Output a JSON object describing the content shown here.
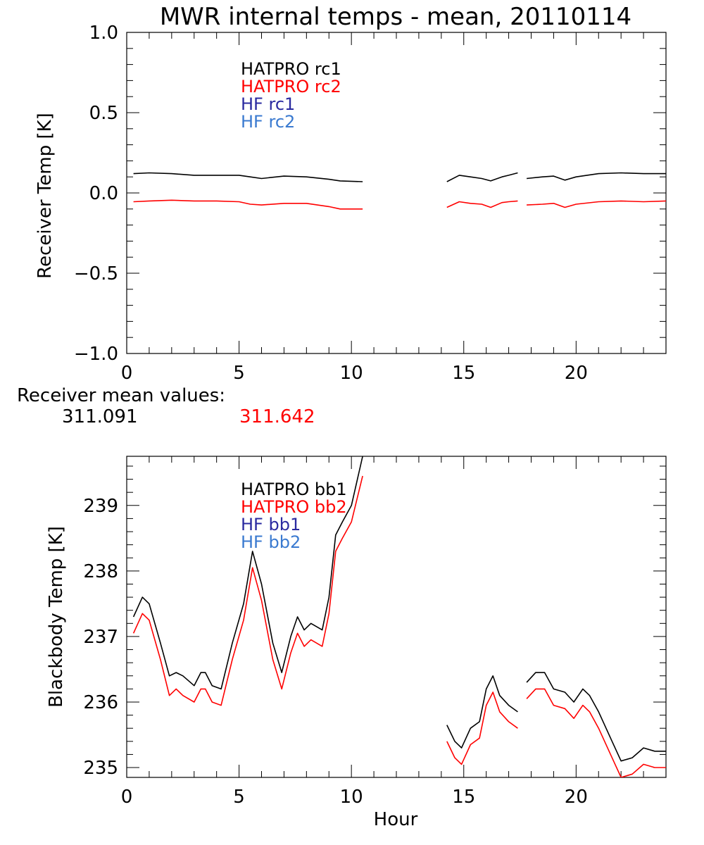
{
  "title": "MWR internal temps - mean, 20110114",
  "xlabel": "Hour",
  "x_tick_labels": [
    "0",
    "5",
    "10",
    "15",
    "20"
  ],
  "receiver_mean": {
    "label": "Receiver mean values:",
    "values": [
      {
        "text": "311.091",
        "color": "#000000"
      },
      {
        "text": "311.642",
        "color": "#ff0000"
      }
    ]
  },
  "chart_data": [
    {
      "type": "line",
      "ylabel": "Receiver Temp [K]",
      "xlabel": "",
      "xlim": [
        0,
        24
      ],
      "ylim": [
        -1.0,
        1.0
      ],
      "y_tick_labels": [
        "-1.0",
        "-0.5",
        "0.0",
        "0.5",
        "1.0"
      ],
      "y_tick_values": [
        -1.0,
        -0.5,
        0.0,
        0.5,
        1.0
      ],
      "legend": [
        {
          "text": "HATPRO rc1",
          "color": "#000000"
        },
        {
          "text": "HATPRO rc2",
          "color": "#ff0000"
        },
        {
          "text": "HF rc1",
          "color": "#2a2aa0"
        },
        {
          "text": "HF rc2",
          "color": "#3a7ad0"
        }
      ],
      "series": [
        {
          "name": "HATPRO rc1",
          "color": "#000000",
          "segments": [
            [
              [
                0.3,
                0.12
              ],
              [
                1.0,
                0.125
              ],
              [
                2.0,
                0.12
              ],
              [
                3.0,
                0.11
              ],
              [
                4.0,
                0.11
              ],
              [
                5.0,
                0.11
              ],
              [
                5.5,
                0.1
              ],
              [
                6.0,
                0.09
              ],
              [
                7.0,
                0.105
              ],
              [
                8.0,
                0.1
              ],
              [
                9.0,
                0.085
              ],
              [
                9.5,
                0.075
              ],
              [
                10.5,
                0.07
              ]
            ],
            [
              [
                14.25,
                0.07
              ],
              [
                14.8,
                0.11
              ],
              [
                15.3,
                0.1
              ],
              [
                15.8,
                0.09
              ],
              [
                16.2,
                0.075
              ],
              [
                16.7,
                0.1
              ],
              [
                17.0,
                0.11
              ],
              [
                17.4,
                0.125
              ]
            ],
            [
              [
                17.8,
                0.09
              ],
              [
                18.5,
                0.1
              ],
              [
                19.0,
                0.105
              ],
              [
                19.5,
                0.08
              ],
              [
                20.0,
                0.1
              ],
              [
                21.0,
                0.12
              ],
              [
                22.0,
                0.125
              ],
              [
                23.0,
                0.12
              ],
              [
                24.0,
                0.12
              ]
            ]
          ]
        },
        {
          "name": "HATPRO rc2",
          "color": "#ff0000",
          "segments": [
            [
              [
                0.3,
                -0.055
              ],
              [
                1.0,
                -0.05
              ],
              [
                2.0,
                -0.045
              ],
              [
                3.0,
                -0.05
              ],
              [
                4.0,
                -0.05
              ],
              [
                5.0,
                -0.055
              ],
              [
                5.5,
                -0.07
              ],
              [
                6.0,
                -0.075
              ],
              [
                7.0,
                -0.065
              ],
              [
                8.0,
                -0.065
              ],
              [
                9.0,
                -0.085
              ],
              [
                9.5,
                -0.1
              ],
              [
                10.5,
                -0.1
              ]
            ],
            [
              [
                14.25,
                -0.09
              ],
              [
                14.8,
                -0.055
              ],
              [
                15.3,
                -0.065
              ],
              [
                15.8,
                -0.07
              ],
              [
                16.2,
                -0.09
              ],
              [
                16.7,
                -0.06
              ],
              [
                17.0,
                -0.055
              ],
              [
                17.4,
                -0.05
              ]
            ],
            [
              [
                17.8,
                -0.075
              ],
              [
                18.5,
                -0.07
              ],
              [
                19.0,
                -0.065
              ],
              [
                19.5,
                -0.09
              ],
              [
                20.0,
                -0.07
              ],
              [
                21.0,
                -0.055
              ],
              [
                22.0,
                -0.05
              ],
              [
                23.0,
                -0.055
              ],
              [
                24.0,
                -0.05
              ]
            ]
          ]
        }
      ]
    },
    {
      "type": "line",
      "ylabel": "Blackbody Temp [K]",
      "xlabel": "Hour",
      "xlim": [
        0,
        24
      ],
      "ylim": [
        234.85,
        239.75
      ],
      "y_tick_labels": [
        "235",
        "236",
        "237",
        "238",
        "239"
      ],
      "y_tick_values": [
        235,
        236,
        237,
        238,
        239
      ],
      "legend": [
        {
          "text": "HATPRO bb1",
          "color": "#000000"
        },
        {
          "text": "HATPRO bb2",
          "color": "#ff0000"
        },
        {
          "text": "HF bb1",
          "color": "#2a2aa0"
        },
        {
          "text": "HF bb2",
          "color": "#3a7ad0"
        }
      ],
      "series": [
        {
          "name": "HATPRO bb1",
          "color": "#000000",
          "segments": [
            [
              [
                0.3,
                237.3
              ],
              [
                0.7,
                237.6
              ],
              [
                1.0,
                237.5
              ],
              [
                1.5,
                236.9
              ],
              [
                1.9,
                236.4
              ],
              [
                2.2,
                236.45
              ],
              [
                2.5,
                236.4
              ],
              [
                3.0,
                236.25
              ],
              [
                3.3,
                236.45
              ],
              [
                3.5,
                236.45
              ],
              [
                3.8,
                236.25
              ],
              [
                4.2,
                236.2
              ],
              [
                4.7,
                236.9
              ],
              [
                5.2,
                237.5
              ],
              [
                5.6,
                238.3
              ],
              [
                6.0,
                237.8
              ],
              [
                6.5,
                236.9
              ],
              [
                6.9,
                236.45
              ],
              [
                7.3,
                237.0
              ],
              [
                7.6,
                237.3
              ],
              [
                7.9,
                237.1
              ],
              [
                8.2,
                237.2
              ],
              [
                8.7,
                237.1
              ],
              [
                9.0,
                237.6
              ],
              [
                9.3,
                238.55
              ],
              [
                9.6,
                238.75
              ],
              [
                10.0,
                239.0
              ],
              [
                10.5,
                239.75
              ]
            ],
            [
              [
                14.25,
                235.65
              ],
              [
                14.6,
                235.4
              ],
              [
                14.9,
                235.3
              ],
              [
                15.3,
                235.6
              ],
              [
                15.7,
                235.7
              ],
              [
                16.0,
                236.2
              ],
              [
                16.3,
                236.4
              ],
              [
                16.6,
                236.1
              ],
              [
                17.0,
                235.95
              ],
              [
                17.4,
                235.85
              ]
            ],
            [
              [
                17.8,
                236.3
              ],
              [
                18.2,
                236.45
              ],
              [
                18.6,
                236.45
              ],
              [
                19.0,
                236.2
              ],
              [
                19.5,
                236.15
              ],
              [
                19.9,
                236.0
              ],
              [
                20.3,
                236.2
              ],
              [
                20.6,
                236.1
              ],
              [
                21.0,
                235.85
              ],
              [
                21.6,
                235.4
              ],
              [
                22.0,
                235.1
              ],
              [
                22.5,
                235.15
              ],
              [
                23.0,
                235.3
              ],
              [
                23.5,
                235.25
              ],
              [
                24.0,
                235.25
              ]
            ]
          ]
        },
        {
          "name": "HATPRO bb2",
          "color": "#ff0000",
          "segments": [
            [
              [
                0.3,
                237.05
              ],
              [
                0.7,
                237.35
              ],
              [
                1.0,
                237.25
              ],
              [
                1.5,
                236.65
              ],
              [
                1.9,
                236.1
              ],
              [
                2.2,
                236.2
              ],
              [
                2.5,
                236.1
              ],
              [
                3.0,
                236.0
              ],
              [
                3.3,
                236.2
              ],
              [
                3.5,
                236.2
              ],
              [
                3.8,
                236.0
              ],
              [
                4.2,
                235.95
              ],
              [
                4.7,
                236.65
              ],
              [
                5.2,
                237.25
              ],
              [
                5.6,
                238.05
              ],
              [
                6.0,
                237.55
              ],
              [
                6.5,
                236.65
              ],
              [
                6.9,
                236.2
              ],
              [
                7.3,
                236.75
              ],
              [
                7.6,
                237.05
              ],
              [
                7.9,
                236.85
              ],
              [
                8.2,
                236.95
              ],
              [
                8.7,
                236.85
              ],
              [
                9.0,
                237.35
              ],
              [
                9.3,
                238.3
              ],
              [
                9.6,
                238.5
              ],
              [
                10.0,
                238.75
              ],
              [
                10.5,
                239.45
              ]
            ],
            [
              [
                14.25,
                235.4
              ],
              [
                14.6,
                235.15
              ],
              [
                14.9,
                235.05
              ],
              [
                15.3,
                235.35
              ],
              [
                15.7,
                235.45
              ],
              [
                16.0,
                235.95
              ],
              [
                16.3,
                236.15
              ],
              [
                16.6,
                235.85
              ],
              [
                17.0,
                235.7
              ],
              [
                17.4,
                235.6
              ]
            ],
            [
              [
                17.8,
                236.05
              ],
              [
                18.2,
                236.2
              ],
              [
                18.6,
                236.2
              ],
              [
                19.0,
                235.95
              ],
              [
                19.5,
                235.9
              ],
              [
                19.9,
                235.75
              ],
              [
                20.3,
                235.95
              ],
              [
                20.6,
                235.85
              ],
              [
                21.0,
                235.6
              ],
              [
                21.6,
                235.15
              ],
              [
                22.0,
                234.85
              ],
              [
                22.5,
                234.9
              ],
              [
                23.0,
                235.05
              ],
              [
                23.5,
                235.0
              ],
              [
                24.0,
                235.0
              ]
            ]
          ]
        }
      ]
    }
  ]
}
